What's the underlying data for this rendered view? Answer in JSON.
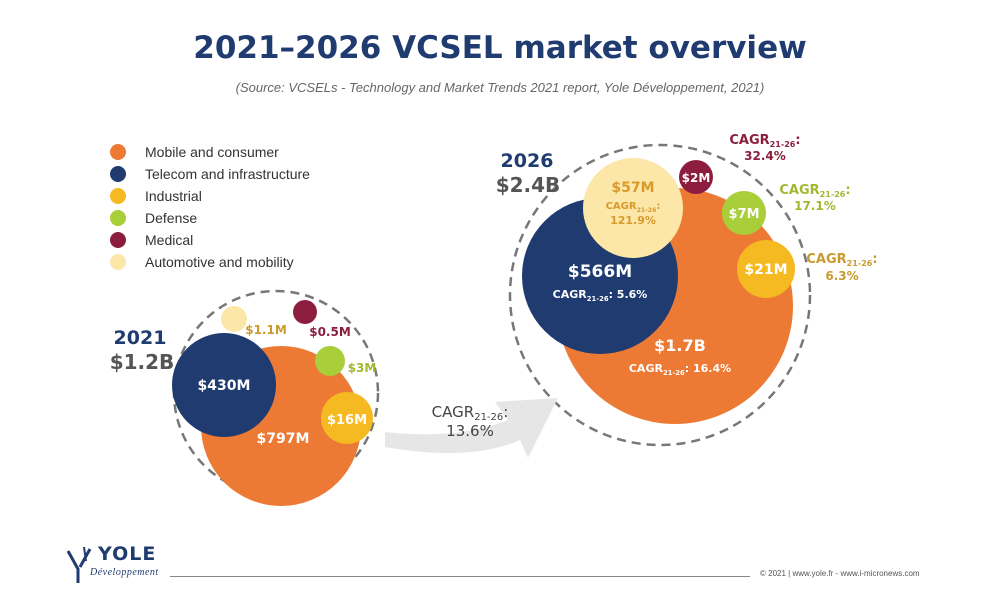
{
  "title": "2021–2026 VCSEL market overview",
  "subtitle": "(Source: VCSELs - Technology and Market Trends 2021 report, Yole Développement, 2021)",
  "footer": "© 2021 | www.yole.fr - www.i-micronews.com",
  "logo": {
    "name": "YOLE",
    "sub": "Développement"
  },
  "colors": {
    "mobile": "#ec7a35",
    "telecom": "#1f3b70",
    "industrial": "#f5b922",
    "defense": "#a8cf3a",
    "medical": "#8c1d3f",
    "automotive": "#fce6a8"
  },
  "legend": [
    {
      "key": "mobile",
      "label": "Mobile and consumer"
    },
    {
      "key": "telecom",
      "label": "Telecom and infrastructure"
    },
    {
      "key": "industrial",
      "label": "Industrial"
    },
    {
      "key": "defense",
      "label": "Defense"
    },
    {
      "key": "medical",
      "label": "Medical"
    },
    {
      "key": "automotive",
      "label": "Automotive and mobility"
    }
  ],
  "arrow_label": {
    "prefix": "CAGR",
    "sub": "21-26",
    "suffix": ":",
    "value": "13.6%"
  },
  "chart_data": {
    "type": "bubble",
    "title": "2021–2026 VCSEL market overview",
    "unit": "$M",
    "overall_cagr_2021_2026_pct": 13.6,
    "years": [
      {
        "year": "2021",
        "total_label": "$1.2B",
        "total_usd_m": 1200,
        "segments": [
          {
            "key": "mobile",
            "name": "Mobile and consumer",
            "value_usd_m": 797,
            "label": "$797M"
          },
          {
            "key": "telecom",
            "name": "Telecom and infrastructure",
            "value_usd_m": 430,
            "label": "$430M"
          },
          {
            "key": "industrial",
            "name": "Industrial",
            "value_usd_m": 16,
            "label": "$16M"
          },
          {
            "key": "defense",
            "name": "Defense",
            "value_usd_m": 3,
            "label": "$3M"
          },
          {
            "key": "medical",
            "name": "Medical",
            "value_usd_m": 0.5,
            "label": "$0.5M"
          },
          {
            "key": "automotive",
            "name": "Automotive and mobility",
            "value_usd_m": 1.1,
            "label": "$1.1M"
          }
        ]
      },
      {
        "year": "2026",
        "total_label": "$2.4B",
        "total_usd_m": 2400,
        "segments": [
          {
            "key": "mobile",
            "name": "Mobile and consumer",
            "value_usd_m": 1700,
            "label": "$1.7B",
            "cagr_pct": 16.4
          },
          {
            "key": "telecom",
            "name": "Telecom and infrastructure",
            "value_usd_m": 566,
            "label": "$566M",
            "cagr_pct": 5.6
          },
          {
            "key": "industrial",
            "name": "Industrial",
            "value_usd_m": 21,
            "label": "$21M",
            "cagr_pct": 6.3
          },
          {
            "key": "defense",
            "name": "Defense",
            "value_usd_m": 7,
            "label": "$7M",
            "cagr_pct": 17.1
          },
          {
            "key": "medical",
            "name": "Medical",
            "value_usd_m": 2,
            "label": "$2M",
            "cagr_pct": 32.4
          },
          {
            "key": "automotive",
            "name": "Automotive and mobility",
            "value_usd_m": 57,
            "label": "$57M",
            "cagr_pct": 121.9
          }
        ]
      }
    ]
  }
}
